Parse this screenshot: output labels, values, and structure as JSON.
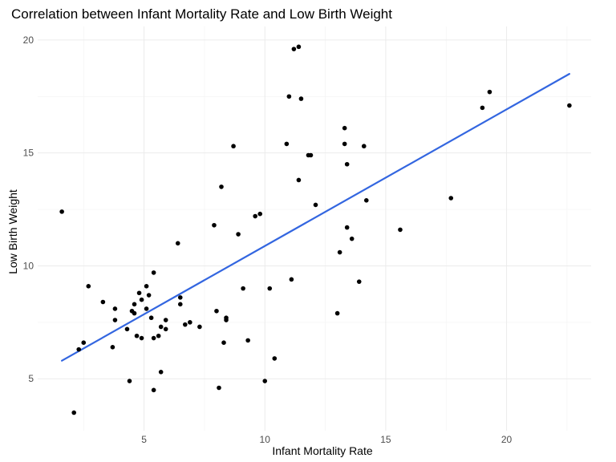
{
  "chart_data": {
    "type": "scatter",
    "title": "Correlation between Infant Mortality Rate and Low Birth Weight",
    "xlabel": "Infant Mortality Rate",
    "ylabel": "Low Birth Weight",
    "xlim": [
      0.6,
      23.5
    ],
    "ylim": [
      2.7,
      20.6
    ],
    "xticks": [
      5,
      10,
      15,
      20
    ],
    "yticks": [
      5,
      10,
      15,
      20
    ],
    "grid": true,
    "point_color": "#000000",
    "trend_color": "#3366e0",
    "trend_line": {
      "x": [
        1.6,
        22.6
      ],
      "y": [
        5.8,
        18.5
      ]
    },
    "points": [
      {
        "x": 1.6,
        "y": 12.4
      },
      {
        "x": 2.1,
        "y": 3.5
      },
      {
        "x": 2.3,
        "y": 6.3
      },
      {
        "x": 2.5,
        "y": 6.6
      },
      {
        "x": 2.7,
        "y": 9.1
      },
      {
        "x": 3.3,
        "y": 8.4
      },
      {
        "x": 3.7,
        "y": 6.4
      },
      {
        "x": 3.8,
        "y": 8.1
      },
      {
        "x": 3.8,
        "y": 7.6
      },
      {
        "x": 4.3,
        "y": 7.2
      },
      {
        "x": 4.4,
        "y": 4.9
      },
      {
        "x": 4.5,
        "y": 8.0
      },
      {
        "x": 4.6,
        "y": 8.3
      },
      {
        "x": 4.6,
        "y": 7.9
      },
      {
        "x": 4.7,
        "y": 6.9
      },
      {
        "x": 4.8,
        "y": 8.8
      },
      {
        "x": 4.9,
        "y": 8.5
      },
      {
        "x": 4.9,
        "y": 6.8
      },
      {
        "x": 5.1,
        "y": 9.1
      },
      {
        "x": 5.1,
        "y": 8.1
      },
      {
        "x": 5.2,
        "y": 8.7
      },
      {
        "x": 5.3,
        "y": 7.7
      },
      {
        "x": 5.4,
        "y": 9.7
      },
      {
        "x": 5.4,
        "y": 6.8
      },
      {
        "x": 5.4,
        "y": 4.5
      },
      {
        "x": 5.6,
        "y": 6.9
      },
      {
        "x": 5.7,
        "y": 7.3
      },
      {
        "x": 5.7,
        "y": 5.3
      },
      {
        "x": 5.9,
        "y": 7.6
      },
      {
        "x": 5.9,
        "y": 7.2
      },
      {
        "x": 6.4,
        "y": 11.0
      },
      {
        "x": 6.5,
        "y": 8.6
      },
      {
        "x": 6.5,
        "y": 8.3
      },
      {
        "x": 6.7,
        "y": 7.4
      },
      {
        "x": 6.9,
        "y": 7.5
      },
      {
        "x": 7.3,
        "y": 7.3
      },
      {
        "x": 7.9,
        "y": 11.8
      },
      {
        "x": 8.0,
        "y": 8.0
      },
      {
        "x": 8.1,
        "y": 4.6
      },
      {
        "x": 8.2,
        "y": 13.5
      },
      {
        "x": 8.3,
        "y": 6.6
      },
      {
        "x": 8.4,
        "y": 7.7
      },
      {
        "x": 8.4,
        "y": 7.6
      },
      {
        "x": 8.7,
        "y": 15.3
      },
      {
        "x": 8.9,
        "y": 11.4
      },
      {
        "x": 9.1,
        "y": 9.0
      },
      {
        "x": 9.3,
        "y": 6.7
      },
      {
        "x": 9.6,
        "y": 12.2
      },
      {
        "x": 9.8,
        "y": 12.3
      },
      {
        "x": 10.0,
        "y": 4.9
      },
      {
        "x": 10.2,
        "y": 9.0
      },
      {
        "x": 10.4,
        "y": 5.9
      },
      {
        "x": 10.9,
        "y": 15.4
      },
      {
        "x": 11.0,
        "y": 17.5
      },
      {
        "x": 11.1,
        "y": 9.4
      },
      {
        "x": 11.2,
        "y": 19.6
      },
      {
        "x": 11.4,
        "y": 19.7
      },
      {
        "x": 11.4,
        "y": 13.8
      },
      {
        "x": 11.5,
        "y": 17.4
      },
      {
        "x": 11.8,
        "y": 14.9
      },
      {
        "x": 11.9,
        "y": 14.9
      },
      {
        "x": 12.1,
        "y": 12.7
      },
      {
        "x": 13.0,
        "y": 7.9
      },
      {
        "x": 13.1,
        "y": 10.6
      },
      {
        "x": 13.3,
        "y": 16.1
      },
      {
        "x": 13.3,
        "y": 15.4
      },
      {
        "x": 13.4,
        "y": 14.5
      },
      {
        "x": 13.4,
        "y": 11.7
      },
      {
        "x": 13.6,
        "y": 11.2
      },
      {
        "x": 13.9,
        "y": 9.3
      },
      {
        "x": 14.1,
        "y": 15.3
      },
      {
        "x": 14.2,
        "y": 12.9
      },
      {
        "x": 15.6,
        "y": 11.6
      },
      {
        "x": 17.7,
        "y": 13.0
      },
      {
        "x": 19.0,
        "y": 17.0
      },
      {
        "x": 19.3,
        "y": 17.7
      },
      {
        "x": 22.6,
        "y": 17.1
      }
    ]
  }
}
